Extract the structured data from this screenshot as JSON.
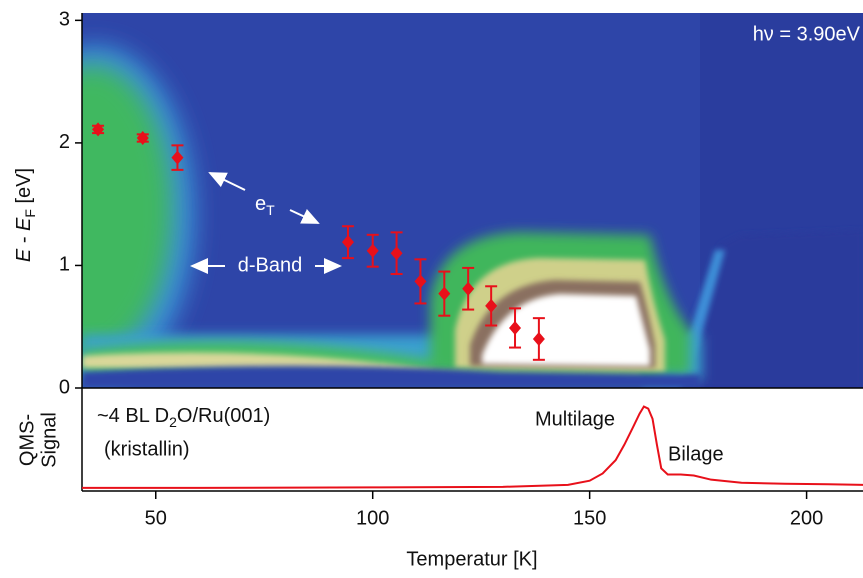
{
  "chart_data": [
    {
      "type": "scatter",
      "ylabel_parts": [
        "E",
        " - ",
        "E",
        "F",
        " [eV]"
      ],
      "photon_energy": "hν = 3.90eV",
      "label_eT": [
        "e",
        "T"
      ],
      "label_dband": "d-Band",
      "x": [
        36.7,
        47.0,
        55.0,
        94.3,
        100.0,
        105.5,
        111.0,
        116.5,
        122.0,
        127.3,
        132.8,
        138.3
      ],
      "values": [
        2.11,
        2.04,
        1.88,
        1.19,
        1.12,
        1.1,
        0.87,
        0.77,
        0.81,
        0.67,
        0.49,
        0.4
      ],
      "errors": [
        0.03,
        0.03,
        0.1,
        0.13,
        0.13,
        0.17,
        0.18,
        0.18,
        0.17,
        0.16,
        0.16,
        0.17
      ],
      "color": "#e8101a",
      "xlim": [
        33,
        213
      ],
      "ylim": [
        0,
        3.06
      ],
      "yticks": [
        0,
        1,
        2,
        3
      ]
    },
    {
      "type": "line",
      "ylabel_lines": [
        "QMS-",
        "Signal"
      ],
      "xlabel": "Temperatur [K]",
      "sample_parts": [
        "~4 BL D",
        "2",
        "O/Ru(001)"
      ],
      "sample_state": "(kristallin)",
      "label_multilayer": "Multilage",
      "label_bilayer": "Bilage",
      "x": [
        33,
        60,
        100,
        130,
        145,
        150,
        153,
        156,
        158,
        160,
        161.5,
        162.5,
        163.5,
        164.5,
        165.5,
        166.5,
        168,
        171,
        174,
        178,
        185,
        195,
        205,
        213
      ],
      "values": [
        0.03,
        0.03,
        0.035,
        0.04,
        0.06,
        0.1,
        0.17,
        0.3,
        0.45,
        0.62,
        0.75,
        0.82,
        0.8,
        0.7,
        0.45,
        0.22,
        0.16,
        0.16,
        0.15,
        0.11,
        0.08,
        0.07,
        0.065,
        0.06
      ],
      "color": "#e8101a",
      "xlim": [
        33,
        213
      ],
      "ylim": [
        0,
        1
      ],
      "xticks": [
        50,
        100,
        150,
        200
      ]
    }
  ]
}
